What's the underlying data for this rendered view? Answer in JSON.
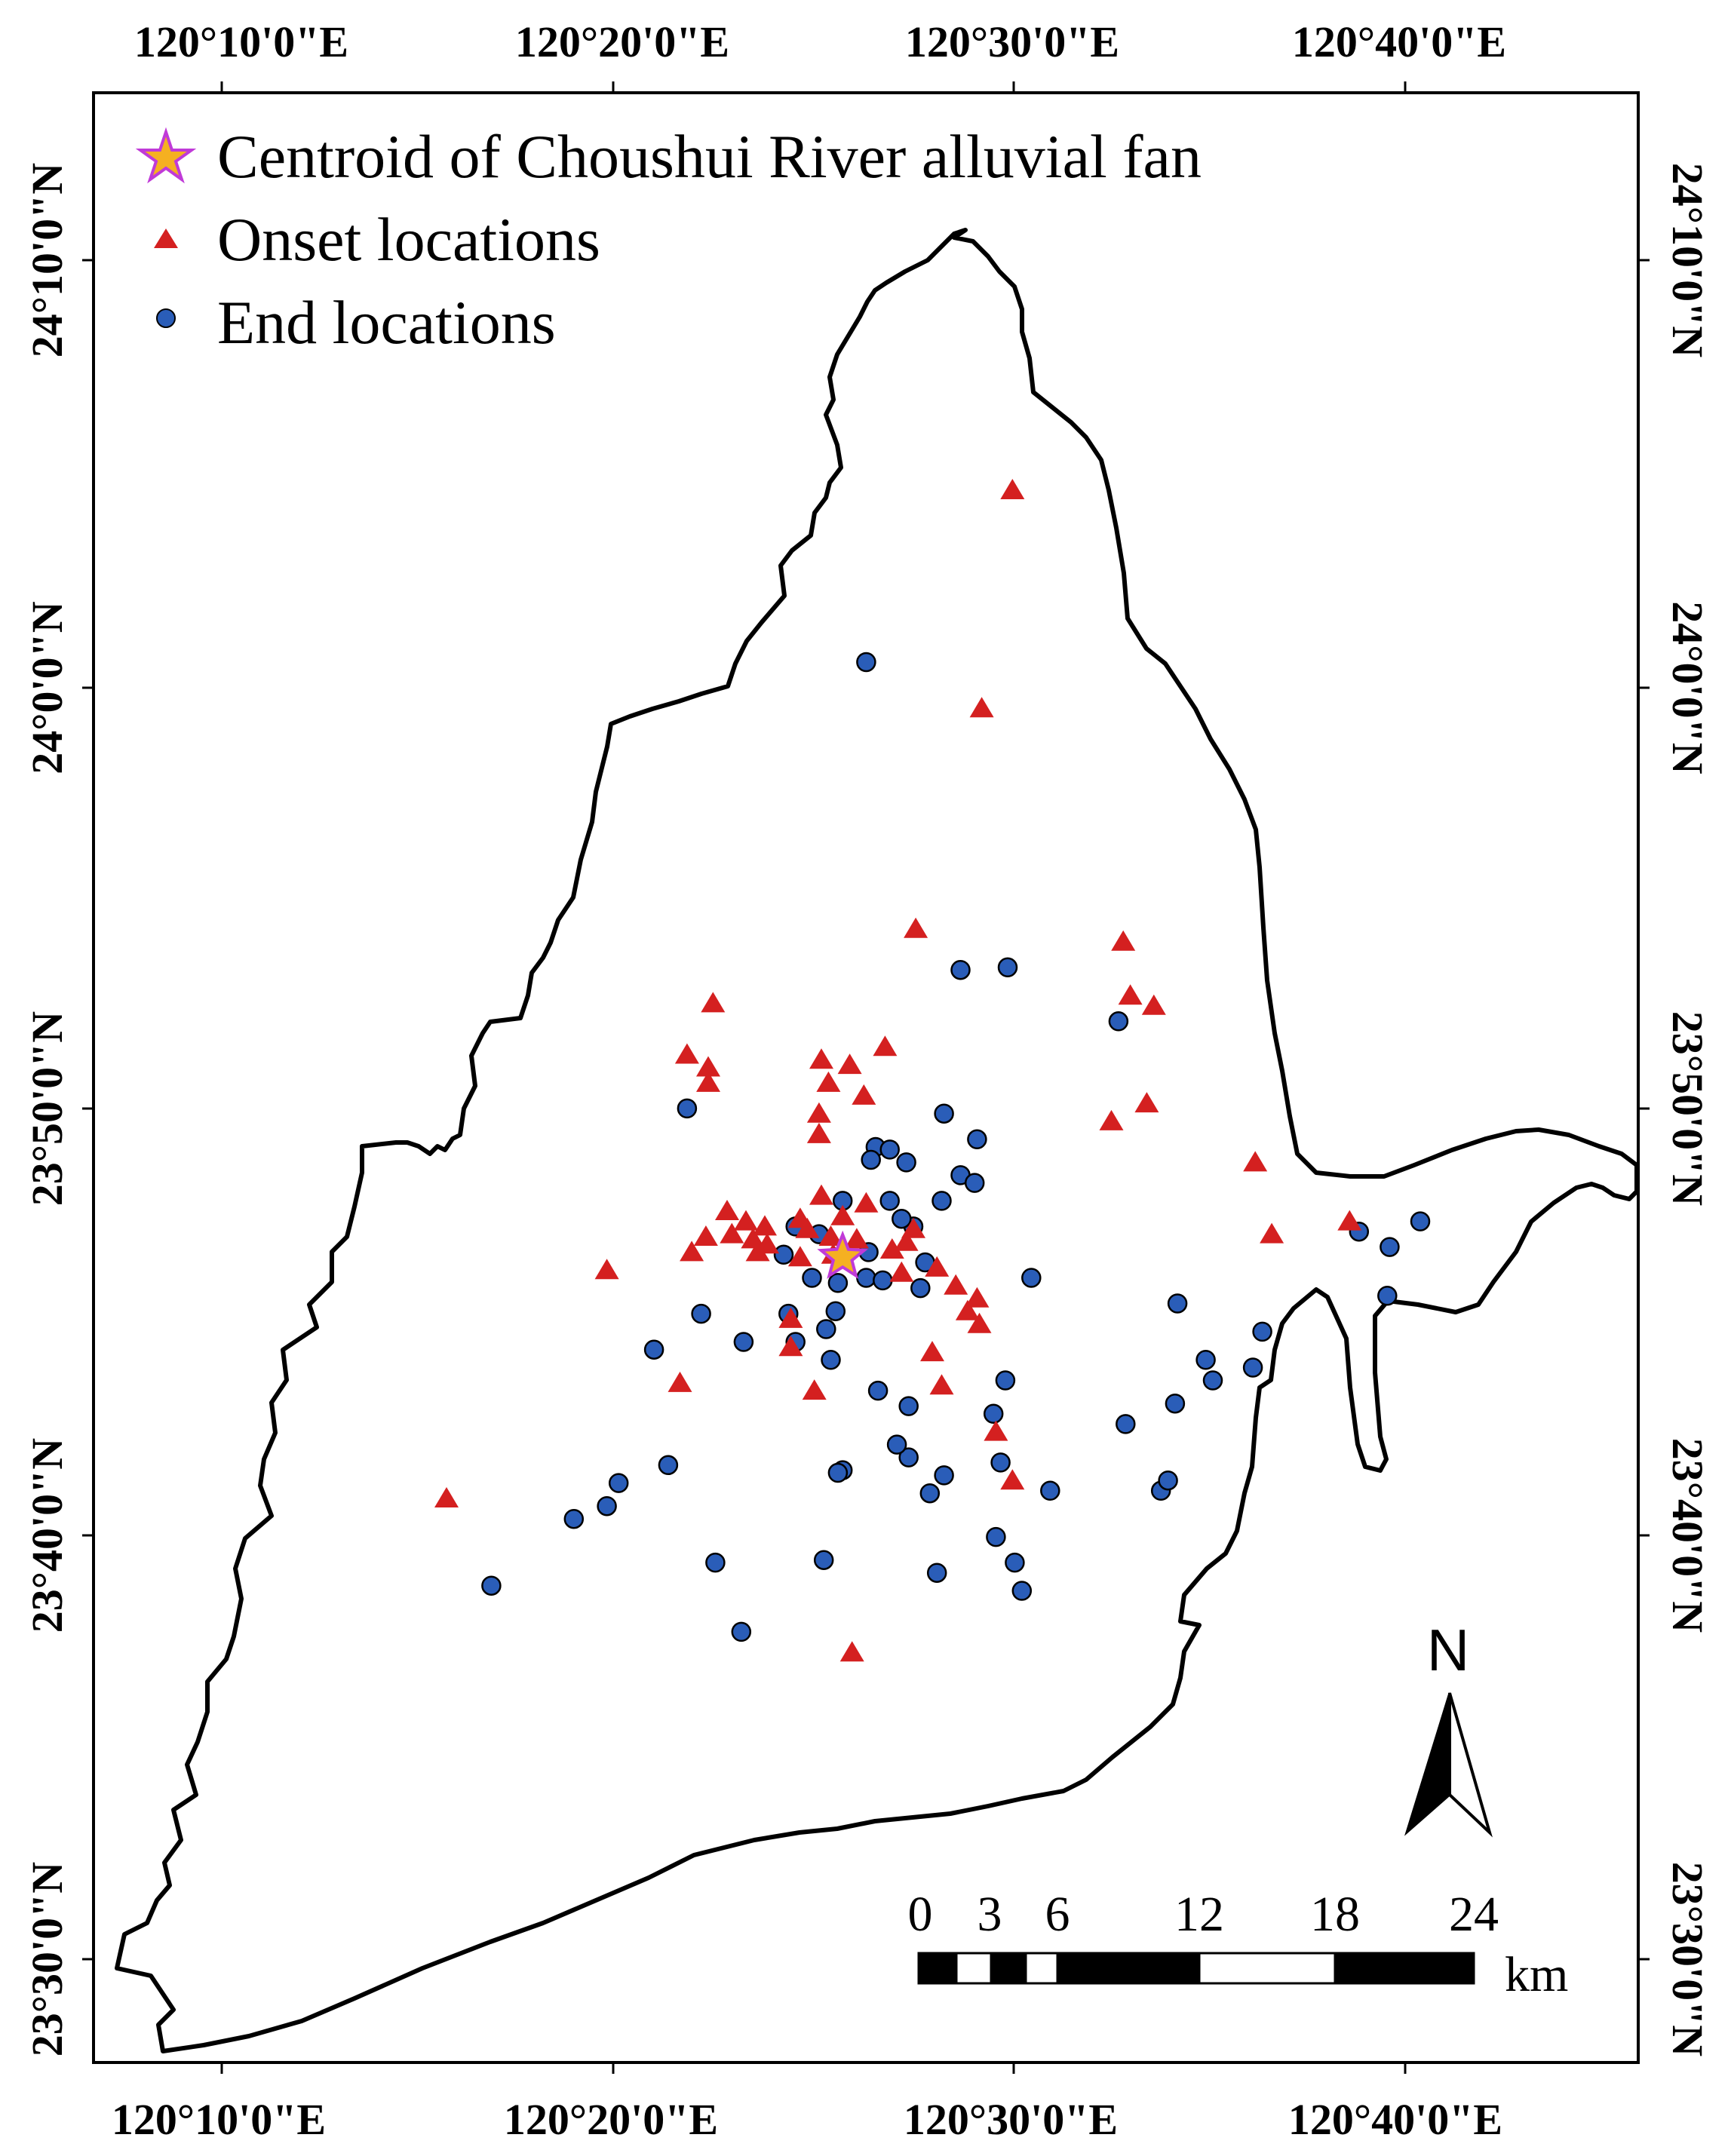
{
  "map": {
    "lon_ticks": [
      "120°10'0\"E",
      "120°20'0\"E",
      "120°30'0\"E",
      "120°40'0\"E"
    ],
    "lat_ticks": [
      "24°10'0\"N",
      "24°0'0\"N",
      "23°50'0\"N",
      "23°40'0\"N",
      "23°30'0\"N"
    ],
    "legend": {
      "centroid_label": "Centroid of Choushui River alluvial fan",
      "onset_label": "Onset locations",
      "end_label": "End  locations"
    },
    "colors": {
      "onset": "#d42020",
      "end": "#2a5db8",
      "centroid_fill": "#f5b021",
      "centroid_stroke": "#c03ad8",
      "boundary": "#000000"
    },
    "north_arrow": {
      "label": "N"
    },
    "scale_bar": {
      "labels": [
        "0",
        "3",
        "6",
        "12",
        "18",
        "24"
      ],
      "unit": "km"
    },
    "centroid": {
      "lon": 120.43,
      "lat": 23.778
    },
    "onset_points": [
      [
        120.502,
        24.077
      ],
      [
        120.489,
        23.992
      ],
      [
        120.461,
        23.906
      ],
      [
        120.549,
        23.901
      ],
      [
        120.552,
        23.88
      ],
      [
        120.562,
        23.876
      ],
      [
        120.375,
        23.877
      ],
      [
        120.364,
        23.857
      ],
      [
        120.373,
        23.852
      ],
      [
        120.373,
        23.846
      ],
      [
        120.421,
        23.855
      ],
      [
        120.433,
        23.853
      ],
      [
        120.424,
        23.846
      ],
      [
        120.439,
        23.841
      ],
      [
        120.448,
        23.86
      ],
      [
        120.559,
        23.838
      ],
      [
        120.42,
        23.826
      ],
      [
        120.605,
        23.815
      ],
      [
        120.544,
        23.831
      ],
      [
        120.42,
        23.834
      ],
      [
        120.421,
        23.802
      ],
      [
        120.44,
        23.799
      ],
      [
        120.397,
        23.79
      ],
      [
        120.412,
        23.793
      ],
      [
        120.43,
        23.794
      ],
      [
        120.381,
        23.796
      ],
      [
        120.389,
        23.792
      ],
      [
        120.392,
        23.785
      ],
      [
        120.383,
        23.787
      ],
      [
        120.398,
        23.783
      ],
      [
        120.372,
        23.786
      ],
      [
        120.415,
        23.789
      ],
      [
        120.425,
        23.786
      ],
      [
        120.436,
        23.785
      ],
      [
        120.451,
        23.781
      ],
      [
        120.457,
        23.784
      ],
      [
        120.46,
        23.789
      ],
      [
        120.645,
        23.792
      ],
      [
        120.612,
        23.787
      ],
      [
        120.366,
        23.78
      ],
      [
        120.394,
        23.78
      ],
      [
        120.412,
        23.778
      ],
      [
        120.426,
        23.779
      ],
      [
        120.455,
        23.772
      ],
      [
        120.47,
        23.774
      ],
      [
        120.478,
        23.767
      ],
      [
        120.487,
        23.762
      ],
      [
        120.483,
        23.757
      ],
      [
        120.408,
        23.754
      ],
      [
        120.488,
        23.752
      ],
      [
        120.408,
        23.743
      ],
      [
        120.468,
        23.741
      ],
      [
        120.33,
        23.773
      ],
      [
        120.361,
        23.729
      ],
      [
        120.418,
        23.726
      ],
      [
        120.472,
        23.728
      ],
      [
        120.495,
        23.71
      ],
      [
        120.502,
        23.691
      ],
      [
        120.262,
        23.684
      ],
      [
        120.434,
        23.624
      ]
    ],
    "end_points": [
      [
        120.44,
        24.01
      ],
      [
        120.48,
        23.89
      ],
      [
        120.5,
        23.891
      ],
      [
        120.547,
        23.87
      ],
      [
        120.364,
        23.836
      ],
      [
        120.473,
        23.834
      ],
      [
        120.487,
        23.824
      ],
      [
        120.444,
        23.821
      ],
      [
        120.457,
        23.815
      ],
      [
        120.442,
        23.816
      ],
      [
        120.45,
        23.82
      ],
      [
        120.48,
        23.81
      ],
      [
        120.486,
        23.807
      ],
      [
        120.45,
        23.8
      ],
      [
        120.43,
        23.8
      ],
      [
        120.46,
        23.79
      ],
      [
        120.42,
        23.787
      ],
      [
        120.455,
        23.793
      ],
      [
        120.472,
        23.8
      ],
      [
        120.41,
        23.79
      ],
      [
        120.441,
        23.78
      ],
      [
        120.465,
        23.776
      ],
      [
        120.44,
        23.77
      ],
      [
        120.447,
        23.769
      ],
      [
        120.405,
        23.779
      ],
      [
        120.428,
        23.768
      ],
      [
        120.417,
        23.77
      ],
      [
        120.463,
        23.766
      ],
      [
        120.51,
        23.77
      ],
      [
        120.37,
        23.756
      ],
      [
        120.427,
        23.757
      ],
      [
        120.388,
        23.745
      ],
      [
        120.407,
        23.756
      ],
      [
        120.423,
        23.75
      ],
      [
        120.35,
        23.742
      ],
      [
        120.41,
        23.745
      ],
      [
        120.425,
        23.738
      ],
      [
        120.499,
        23.73
      ],
      [
        120.445,
        23.726
      ],
      [
        120.494,
        23.717
      ],
      [
        120.55,
        23.713
      ],
      [
        120.571,
        23.721
      ],
      [
        120.604,
        23.735
      ],
      [
        120.587,
        23.73
      ],
      [
        120.584,
        23.738
      ],
      [
        120.649,
        23.788
      ],
      [
        120.675,
        23.792
      ],
      [
        120.662,
        23.782
      ],
      [
        120.661,
        23.763
      ],
      [
        120.608,
        23.749
      ],
      [
        120.572,
        23.76
      ],
      [
        120.356,
        23.697
      ],
      [
        120.43,
        23.695
      ],
      [
        120.458,
        23.7
      ],
      [
        120.497,
        23.698
      ],
      [
        120.335,
        23.69
      ],
      [
        120.33,
        23.681
      ],
      [
        120.428,
        23.694
      ],
      [
        120.316,
        23.676
      ],
      [
        120.467,
        23.686
      ],
      [
        120.473,
        23.693
      ],
      [
        120.518,
        23.687
      ],
      [
        120.47,
        23.655
      ],
      [
        120.387,
        23.632
      ],
      [
        120.281,
        23.65
      ],
      [
        120.376,
        23.659
      ],
      [
        120.422,
        23.66
      ],
      [
        120.503,
        23.659
      ],
      [
        120.506,
        23.648
      ],
      [
        120.565,
        23.687
      ],
      [
        120.568,
        23.691
      ],
      [
        120.495,
        23.669
      ],
      [
        120.458,
        23.72
      ],
      [
        120.453,
        23.705
      ]
    ]
  }
}
